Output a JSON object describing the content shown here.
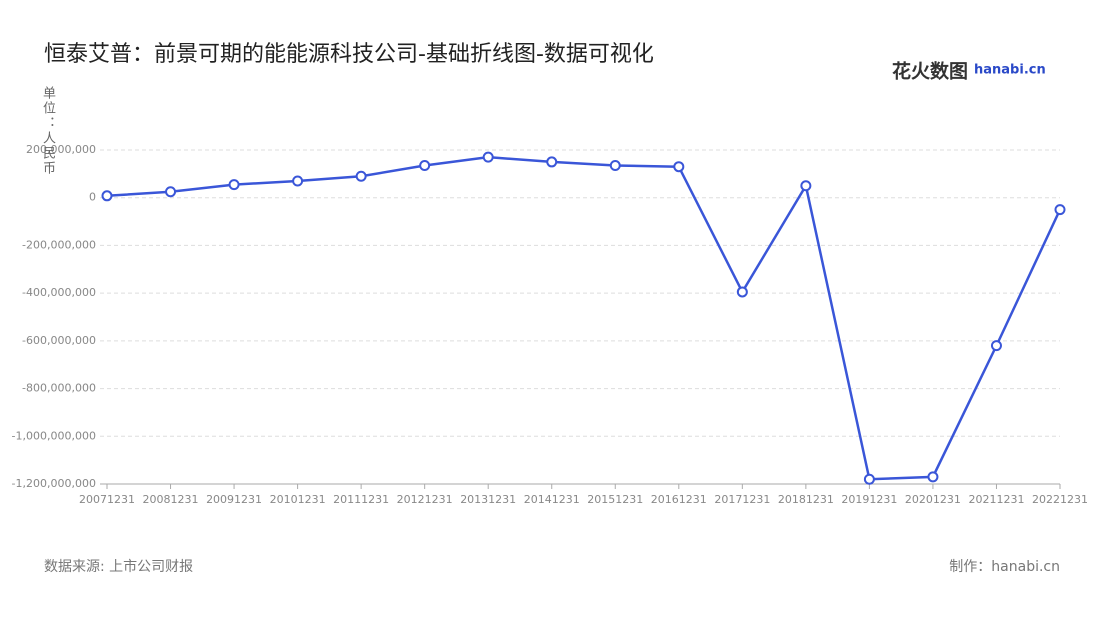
{
  "chart_data": {
    "type": "line",
    "title": "恒泰艾普：前景可期的能能源科技公司-基础折线图-数据可视化",
    "logo": "花火数图",
    "logo_sub": "hanabi.cn",
    "y_label": "单位：人民币",
    "source": "数据来源: 上市公司财报",
    "credit": "制作：hanabi.cn",
    "categories": [
      "20071231",
      "20081231",
      "20091231",
      "20101231",
      "20111231",
      "20121231",
      "20131231",
      "20141231",
      "20151231",
      "20161231",
      "20171231",
      "20181231",
      "20191231",
      "20201231",
      "20211231",
      "20221231"
    ],
    "values": [
      8000000,
      25000000,
      55000000,
      70000000,
      90000000,
      135000000,
      170000000,
      150000000,
      135000000,
      130000000,
      -395000000,
      50000000,
      -1180000000,
      -1170000000,
      -620000000,
      -50000000
    ],
    "color": "#3a56d8",
    "ylim": [
      -1200000000,
      200000000
    ],
    "yticks": [
      {
        "value": 200000000,
        "label": "200,000,000"
      },
      0,
      {
        "value": -200000000,
        "label": "-200,000,000"
      },
      {
        "value": -400000000,
        "label": "-400,000,000"
      },
      {
        "value": -600000000,
        "label": "-600,000,000"
      },
      {
        "value": -800000000,
        "label": "-800,000,000"
      },
      {
        "value": -1000000000,
        "label": "-1,000,000,000"
      },
      {
        "value": -1200000000,
        "label": "-1,200,000,000"
      }
    ],
    "grid": true
  }
}
